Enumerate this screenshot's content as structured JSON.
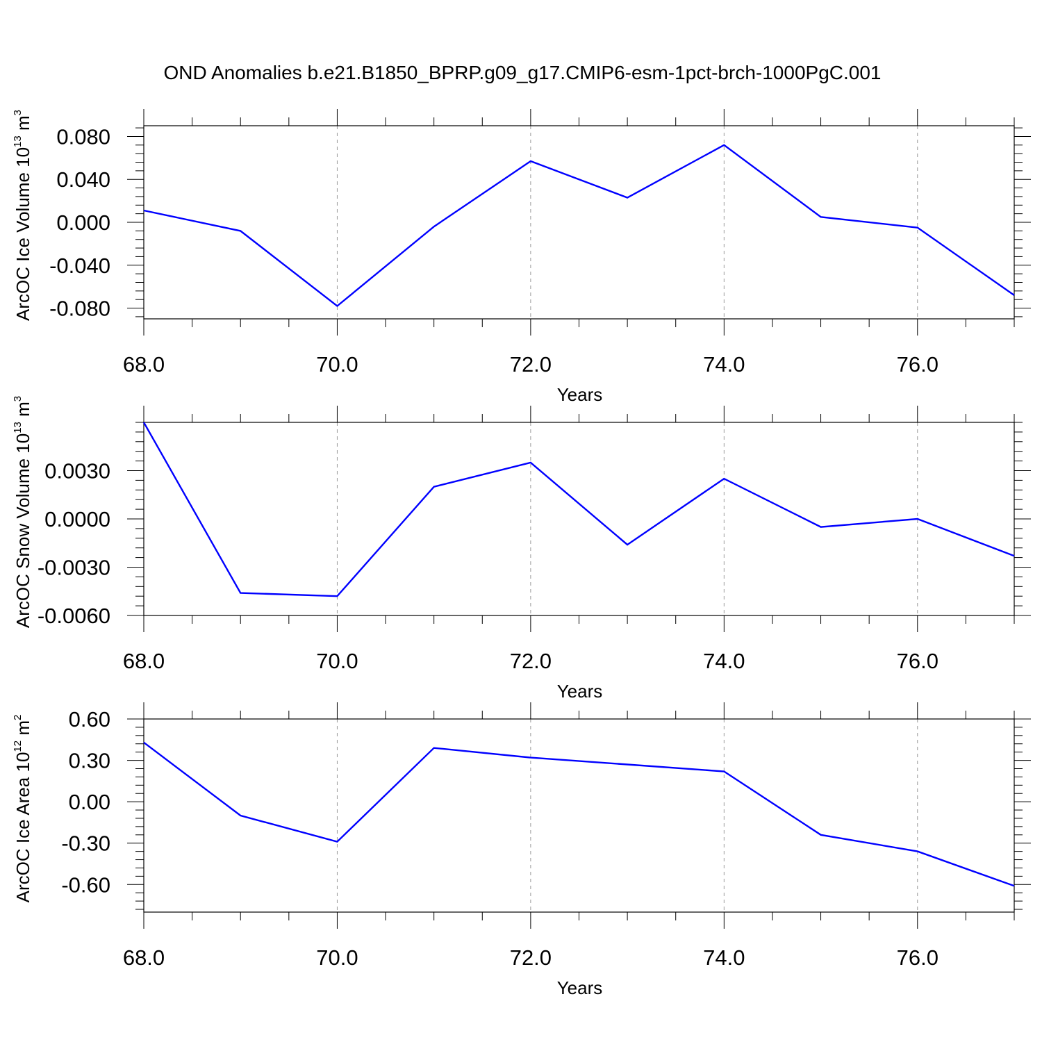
{
  "title": "OND Anomalies b.e21.B1850_BPRP.g09_g17.CMIP6-esm-1pct-brch-1000PgC.001",
  "colors": {
    "line": "#0000ff",
    "axis": "#000000",
    "grid": "#999999"
  },
  "chart_data": [
    {
      "type": "line",
      "xlabel": "Years",
      "ylabel": {
        "text": "ArcOC Ice Volume 10",
        "exp": "13",
        "unit": " m",
        "unit_exp": "3"
      },
      "xlim": [
        68,
        77
      ],
      "ylim": [
        -0.09,
        0.09
      ],
      "xticks": [
        68,
        70,
        72,
        74,
        76
      ],
      "xtick_labels": [
        "68.0",
        "70.0",
        "72.0",
        "74.0",
        "76.0"
      ],
      "yticks": [
        0.08,
        0.04,
        0.0,
        -0.04,
        -0.08
      ],
      "ytick_labels": [
        "0.080",
        "0.040",
        "0.000",
        "-0.040",
        "-0.080"
      ],
      "x": [
        68,
        69,
        70,
        71,
        72,
        73,
        74,
        75,
        76,
        77
      ],
      "y": [
        0.011,
        -0.008,
        -0.078,
        -0.004,
        0.057,
        0.023,
        0.072,
        0.005,
        -0.005,
        -0.068
      ],
      "grid": "vertical dashed at major x ticks"
    },
    {
      "type": "line",
      "xlabel": "Years",
      "ylabel": {
        "text": "ArcOC Snow Volume 10",
        "exp": "13",
        "unit": " m",
        "unit_exp": "3"
      },
      "xlim": [
        68,
        77
      ],
      "ylim": [
        -0.006,
        0.006
      ],
      "xticks": [
        68,
        70,
        72,
        74,
        76
      ],
      "xtick_labels": [
        "68.0",
        "70.0",
        "72.0",
        "74.0",
        "76.0"
      ],
      "yticks": [
        0.003,
        0.0,
        -0.003,
        -0.006
      ],
      "ytick_labels": [
        "0.0030",
        "0.0000",
        "-0.0030",
        "-0.0060"
      ],
      "x": [
        68,
        69,
        70,
        71,
        72,
        73,
        74,
        75,
        76,
        77
      ],
      "y": [
        0.006,
        -0.0046,
        -0.0048,
        0.002,
        0.0035,
        -0.0016,
        0.0025,
        -0.0005,
        0.0,
        -0.0023
      ],
      "grid": "vertical dashed at major x ticks"
    },
    {
      "type": "line",
      "xlabel": "Years",
      "ylabel": {
        "text": "ArcOC Ice Area 10",
        "exp": "12",
        "unit": " m",
        "unit_exp": "2"
      },
      "xlim": [
        68,
        77
      ],
      "ylim": [
        -0.8,
        0.6
      ],
      "xticks": [
        68,
        70,
        72,
        74,
        76
      ],
      "xtick_labels": [
        "68.0",
        "70.0",
        "72.0",
        "74.0",
        "76.0"
      ],
      "yticks": [
        0.6,
        0.3,
        0.0,
        -0.3,
        -0.6
      ],
      "ytick_labels": [
        "0.60",
        "0.30",
        "0.00",
        "-0.30",
        "-0.60"
      ],
      "x": [
        68,
        69,
        70,
        71,
        72,
        73,
        74,
        75,
        76,
        77
      ],
      "y": [
        0.43,
        -0.1,
        -0.29,
        0.39,
        0.32,
        0.27,
        0.22,
        -0.24,
        -0.36,
        -0.61
      ],
      "grid": "vertical dashed at major x ticks"
    }
  ]
}
